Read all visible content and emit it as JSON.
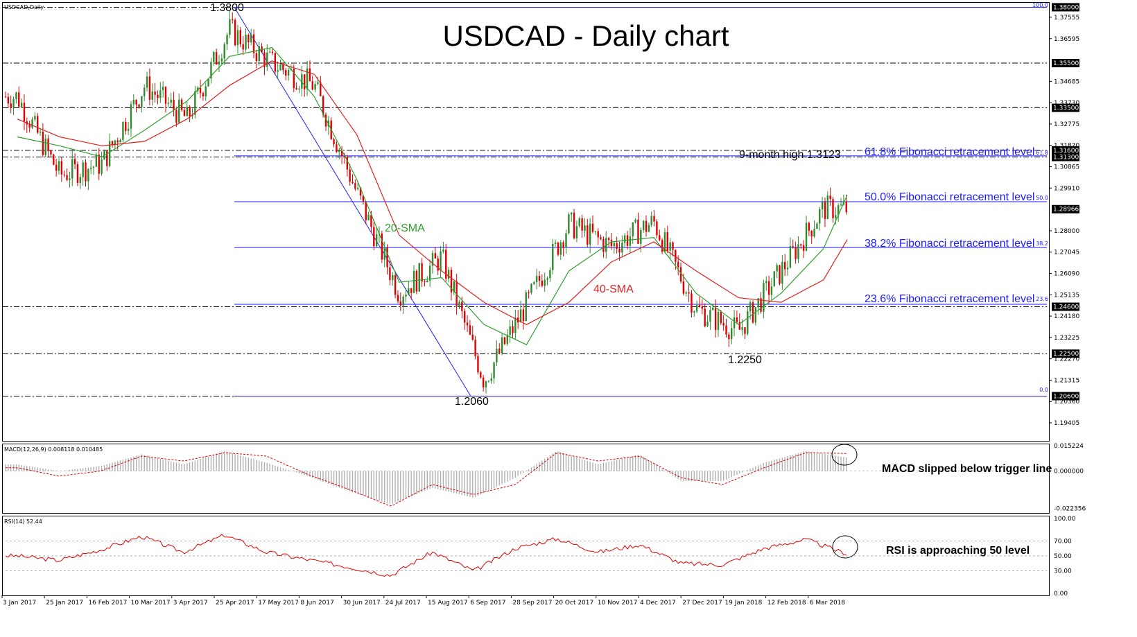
{
  "colors": {
    "candle_up": "#2e8b2e",
    "candle_down": "#e00000",
    "sma20": "#2e9e2e",
    "sma40": "#e02020",
    "fib": "#1a1aff",
    "macd_hist": "#b0b0b0",
    "macd_signal": "#e00000",
    "rsi": "#e00000"
  },
  "chart_data": [
    {
      "type": "candlestick",
      "name": "price",
      "title": "USDCAD - Daily chart",
      "header_label": "USDCAD,Daily",
      "ylim": [
        1.186,
        1.382
      ],
      "y_ticks": [
        "1.37555",
        "1.36595",
        "1.34685",
        "1.33730",
        "1.32775",
        "1.31820",
        "1.30865",
        "1.29910",
        "1.28000",
        "1.27045",
        "1.26090",
        "1.25135",
        "1.24180",
        "1.23225",
        "1.22270",
        "1.21315",
        "1.20360",
        "1.19405"
      ],
      "price_tags": [
        {
          "value": "1.38000",
          "y": 1.38
        },
        {
          "value": "1.35500",
          "y": 1.355
        },
        {
          "value": "1.33500",
          "y": 1.335
        },
        {
          "value": "1.31600",
          "y": 1.316
        },
        {
          "value": "1.31300",
          "y": 1.313
        },
        {
          "value": "1.28966",
          "y": 1.28966
        },
        {
          "value": "1.24600",
          "y": 1.246
        },
        {
          "value": "1.22500",
          "y": 1.225
        },
        {
          "value": "1.20600",
          "y": 1.206
        }
      ],
      "horizontal_levels": [
        1.38,
        1.355,
        1.335,
        1.316,
        1.313,
        1.246,
        1.225,
        1.206
      ],
      "x_labels": [
        "3 Jan 2017",
        "25 Jan 2017",
        "16 Feb 2017",
        "10 Mar 2017",
        "3 Apr 2017",
        "25 Apr 2017",
        "17 May 2017",
        "8 Jun 2017",
        "30 Jun 2017",
        "24 Jul 2017",
        "15 Aug 2017",
        "6 Sep 2017",
        "28 Sep 2017",
        "20 Oct 2017",
        "10 Nov 2017",
        "4 Dec 2017",
        "27 Dec 2017",
        "19 Jan 2018",
        "12 Feb 2018",
        "6 Mar 2018"
      ],
      "fibonacci": {
        "from": 1.38,
        "to": 1.206,
        "levels": [
          {
            "ratio": "100.0",
            "value": 1.38,
            "label": ""
          },
          {
            "ratio": "61.8",
            "value": 1.3135,
            "label": "61.8% Fibonacci retracement level"
          },
          {
            "ratio": "50.0",
            "value": 1.293,
            "label": "50.0% Fibonacci retracement level"
          },
          {
            "ratio": "38.2",
            "value": 1.2725,
            "label": "38.2% Fibonacci retracement level"
          },
          {
            "ratio": "23.6",
            "value": 1.2471,
            "label": "23.6% Fibonacci retracement level"
          },
          {
            "ratio": "0.0",
            "value": 1.206,
            "label": ""
          }
        ]
      },
      "annotations": [
        {
          "text": "1.3800",
          "x": "25 Apr 2017"
        },
        {
          "text": "9-month high 1.3123",
          "x": "6 Mar 2018"
        },
        {
          "text": "1.2060",
          "x": "6 Sep 2017"
        },
        {
          "text": "1.2250",
          "x": "19 Jan 2018"
        },
        {
          "text": "20-SMA",
          "x": "24 Jul 2017"
        },
        {
          "text": "40-SMA",
          "x": "28 Sep 2017"
        }
      ],
      "close_path": [
        [
          "3 Jan 2017",
          1.34
        ],
        [
          "25 Jan 2017",
          1.305
        ],
        [
          "16 Feb 2017",
          1.31
        ],
        [
          "10 Mar 2017",
          1.345
        ],
        [
          "3 Apr 2017",
          1.33
        ],
        [
          "25 Apr 2017",
          1.37
        ],
        [
          "17 May 2017",
          1.355
        ],
        [
          "8 Jun 2017",
          1.345
        ],
        [
          "30 Jun 2017",
          1.297
        ],
        [
          "24 Jul 2017",
          1.252
        ],
        [
          "15 Aug 2017",
          1.268
        ],
        [
          "6 Sep 2017",
          1.213
        ],
        [
          "28 Sep 2017",
          1.247
        ],
        [
          "20 Oct 2017",
          1.283
        ],
        [
          "10 Nov 2017",
          1.273
        ],
        [
          "4 Dec 2017",
          1.284
        ],
        [
          "27 Dec 2017",
          1.245
        ],
        [
          "19 Jan 2018",
          1.235
        ],
        [
          "12 Feb 2018",
          1.262
        ],
        [
          "6 Mar 2018",
          1.29
        ],
        [
          "end",
          1.2897
        ]
      ],
      "sma20": [
        1.322,
        1.318,
        1.313,
        1.325,
        1.338,
        1.358,
        1.362,
        1.34,
        1.303,
        1.257,
        1.259,
        1.238,
        1.229,
        1.262,
        1.275,
        1.277,
        1.252,
        1.238,
        1.252,
        1.272,
        1.296
      ],
      "sma40": [
        1.33,
        1.322,
        1.318,
        1.32,
        1.33,
        1.345,
        1.356,
        1.35,
        1.323,
        1.278,
        1.262,
        1.248,
        1.238,
        1.248,
        1.266,
        1.275,
        1.262,
        1.25,
        1.248,
        1.258,
        1.276
      ]
    },
    {
      "type": "histogram",
      "name": "macd",
      "header_label": "MACD(12,26,9) 0.008118 0.010485",
      "ylim": [
        -0.025,
        0.016
      ],
      "y_ticks": [
        "0.015224",
        "0.000000",
        "-0.022356"
      ],
      "histogram": [
        0.004,
        0.0,
        0.003,
        0.01,
        0.004,
        0.012,
        0.005,
        -0.003,
        -0.012,
        -0.02,
        -0.01,
        -0.016,
        -0.004,
        0.012,
        0.004,
        0.01,
        -0.006,
        -0.006,
        0.005,
        0.012,
        0.0081
      ],
      "signal": [
        0.002,
        -0.003,
        0.0,
        0.009,
        0.006,
        0.011,
        0.009,
        -0.002,
        -0.011,
        -0.021,
        -0.008,
        -0.014,
        -0.008,
        0.011,
        0.006,
        0.009,
        -0.004,
        -0.008,
        0.002,
        0.011,
        0.0105
      ],
      "note": "MACD slipped below trigger line"
    },
    {
      "type": "line",
      "name": "rsi",
      "header_label": "RSI(14) 52.44",
      "ylim": [
        0,
        100
      ],
      "y_ticks": [
        "100.00",
        "70.00",
        "50.00",
        "30.00",
        "0.00"
      ],
      "values": [
        50,
        44,
        58,
        76,
        55,
        78,
        55,
        45,
        35,
        24,
        55,
        30,
        60,
        73,
        55,
        65,
        40,
        38,
        60,
        72,
        52.44
      ],
      "note": "RSI is approaching 50 level"
    }
  ]
}
